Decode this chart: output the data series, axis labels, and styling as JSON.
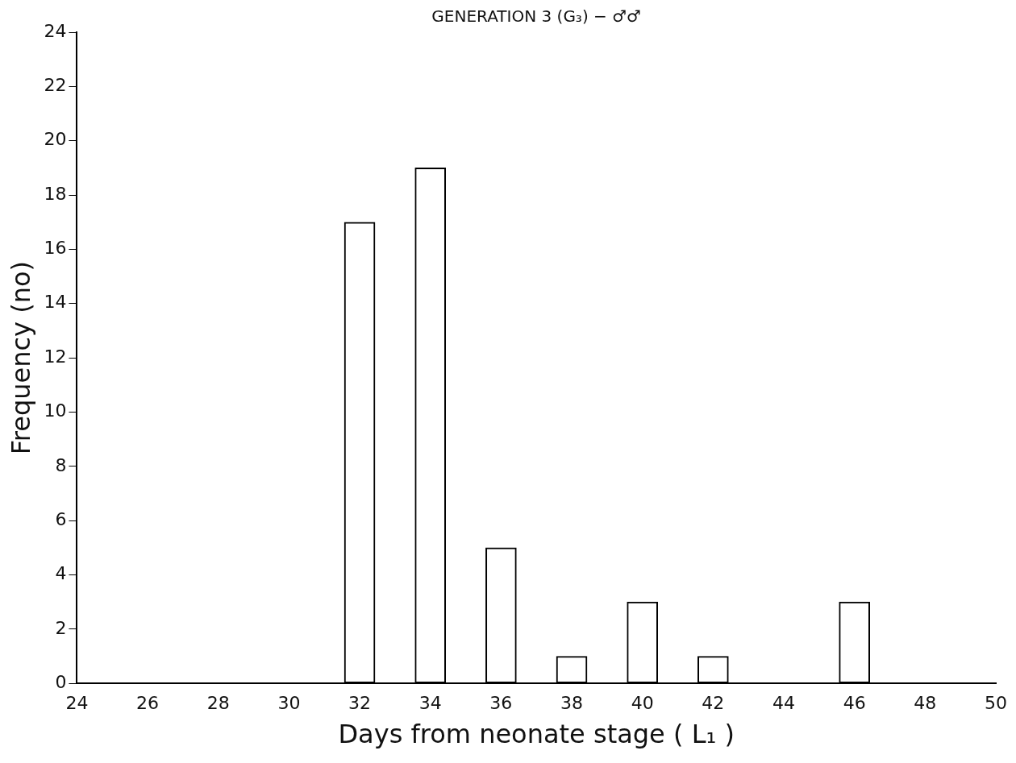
{
  "chart_data": {
    "type": "bar",
    "title": "GENERATION 3 (G₃) − ♂♂",
    "xlabel": "Days from neonate stage ( L₁ )",
    "ylabel": "Frequency (no)",
    "x": [
      32,
      34,
      36,
      38,
      40,
      42,
      46
    ],
    "values": [
      17,
      19,
      5,
      1,
      3,
      1,
      3
    ],
    "color": "#ffffff",
    "xlim": [
      24,
      50
    ],
    "xticks": [
      24,
      26,
      28,
      30,
      32,
      34,
      36,
      38,
      40,
      42,
      44,
      46,
      48,
      50
    ],
    "ylim": [
      0,
      24
    ],
    "yticks": [
      0,
      2,
      4,
      6,
      8,
      10,
      12,
      14,
      16,
      18,
      20,
      22,
      24
    ],
    "grid": false,
    "legend": false
  }
}
